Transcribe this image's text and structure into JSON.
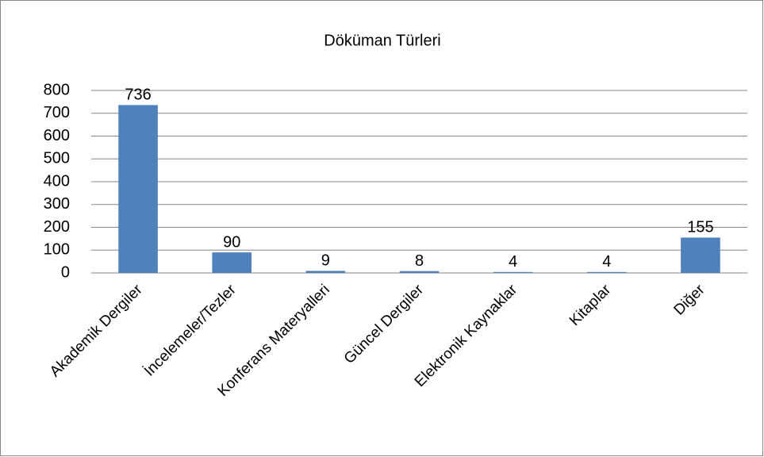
{
  "chart_data": {
    "type": "bar",
    "title": "Döküman Türleri",
    "categories": [
      "Akademik Dergiler",
      "İncelemeler/Tezler",
      "Konferans Materyalleri",
      "Güncel Dergiler",
      "Elektronik Kaynaklar",
      "Kitaplar",
      "Diğer"
    ],
    "values": [
      736,
      90,
      9,
      8,
      4,
      4,
      155
    ],
    "color": "#4f81bd",
    "ylim": [
      0,
      800
    ],
    "yticks": [
      0,
      100,
      200,
      300,
      400,
      500,
      600,
      700,
      800
    ],
    "grid": true
  }
}
